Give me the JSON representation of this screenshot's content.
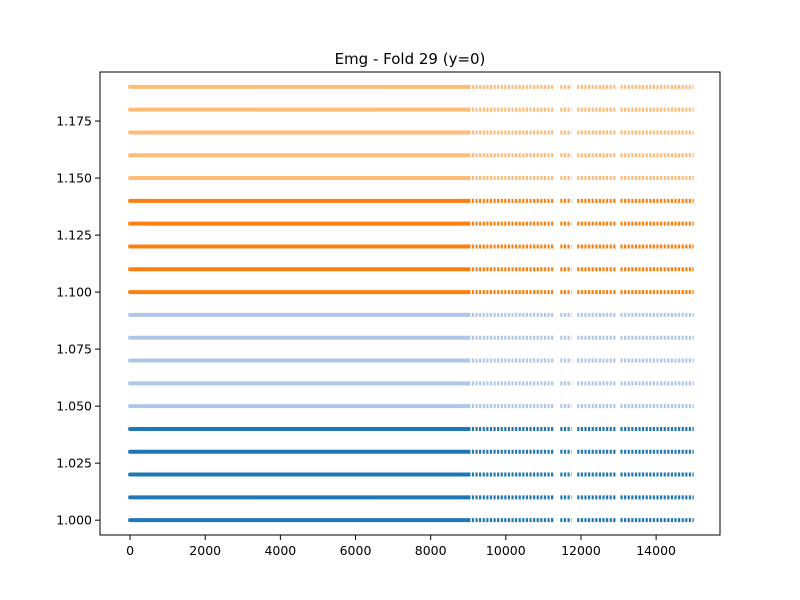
{
  "chart_data": {
    "type": "scatter",
    "title": "Emg - Fold 29 (y=0)",
    "xlabel": "",
    "ylabel": "",
    "xlim": [
      -800,
      15700
    ],
    "ylim": [
      0.9935,
      1.1965
    ],
    "x_ticks": [
      0,
      2000,
      4000,
      6000,
      8000,
      10000,
      12000,
      14000
    ],
    "x_tick_labels": [
      "0",
      "2000",
      "4000",
      "6000",
      "8000",
      "10000",
      "12000",
      "14000"
    ],
    "y_ticks": [
      1.0,
      1.025,
      1.05,
      1.075,
      1.1,
      1.125,
      1.15,
      1.175
    ],
    "y_tick_labels": [
      "1.000",
      "1.025",
      "1.050",
      "1.075",
      "1.100",
      "1.125",
      "1.150",
      "1.175"
    ],
    "grid": false,
    "x_range_dense": [
      0,
      9000
    ],
    "x_range_sparse": [
      9000,
      15000
    ],
    "sparse_gaps": [
      [
        11300,
        11450
      ],
      [
        11750,
        11900
      ],
      [
        12950,
        13050
      ]
    ],
    "series": [
      {
        "color": "#1f77b4",
        "y_levels": [
          1.0,
          1.01,
          1.02,
          1.03,
          1.04
        ]
      },
      {
        "color": "#aec7e8",
        "y_levels": [
          1.05,
          1.06,
          1.07,
          1.08,
          1.09
        ]
      },
      {
        "color": "#ff7f0e",
        "y_levels": [
          1.1,
          1.11,
          1.12,
          1.13,
          1.14
        ]
      },
      {
        "color": "#ffbb78",
        "y_levels": [
          1.15,
          1.16,
          1.17,
          1.18,
          1.19
        ]
      }
    ]
  }
}
